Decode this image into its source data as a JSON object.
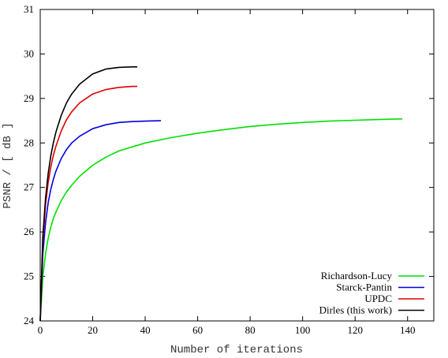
{
  "chart_data": {
    "type": "line",
    "title": "",
    "xlabel": "Number of iterations",
    "ylabel": "PSNR / [ dB ]",
    "xlim": [
      0,
      150
    ],
    "ylim": [
      24,
      31
    ],
    "xticks": [
      0,
      20,
      40,
      60,
      80,
      100,
      120,
      140
    ],
    "yticks": [
      24,
      25,
      26,
      27,
      28,
      29,
      30,
      31
    ],
    "grid": false,
    "legend_position": "bottom-right",
    "series": [
      {
        "name": "Richardson-Lucy",
        "color": "#00e000",
        "x": [
          0,
          1,
          2,
          3,
          4,
          5,
          6,
          8,
          10,
          12,
          15,
          20,
          25,
          30,
          40,
          50,
          60,
          70,
          80,
          90,
          100,
          110,
          120,
          130,
          138
        ],
        "y": [
          24.0,
          25.0,
          25.5,
          25.85,
          26.1,
          26.3,
          26.45,
          26.7,
          26.9,
          27.05,
          27.25,
          27.5,
          27.68,
          27.82,
          28.0,
          28.12,
          28.22,
          28.3,
          28.37,
          28.42,
          28.46,
          28.49,
          28.51,
          28.53,
          28.54
        ]
      },
      {
        "name": "Starck-Pantin",
        "color": "#0000e0",
        "x": [
          0,
          1,
          2,
          3,
          4,
          5,
          6,
          8,
          10,
          12,
          15,
          20,
          25,
          30,
          35,
          40,
          46
        ],
        "y": [
          24.0,
          25.5,
          26.2,
          26.65,
          26.95,
          27.18,
          27.37,
          27.65,
          27.85,
          28.0,
          28.15,
          28.32,
          28.41,
          28.46,
          28.48,
          28.49,
          28.5
        ]
      },
      {
        "name": "UPDC",
        "color": "#e00000",
        "x": [
          0,
          1,
          2,
          3,
          4,
          5,
          6,
          8,
          10,
          12,
          15,
          20,
          25,
          30,
          35,
          37
        ],
        "y": [
          24.0,
          25.8,
          26.6,
          27.1,
          27.45,
          27.72,
          27.93,
          28.27,
          28.52,
          28.7,
          28.9,
          29.1,
          29.2,
          29.25,
          29.27,
          29.27
        ]
      },
      {
        "name": "Dirles (this work)",
        "color": "#000000",
        "x": [
          0,
          1,
          2,
          3,
          4,
          5,
          6,
          8,
          10,
          12,
          15,
          20,
          25,
          30,
          35,
          37
        ],
        "y": [
          24.0,
          25.9,
          26.75,
          27.3,
          27.7,
          28.0,
          28.25,
          28.62,
          28.9,
          29.1,
          29.32,
          29.55,
          29.66,
          29.7,
          29.71,
          29.71
        ]
      }
    ]
  }
}
